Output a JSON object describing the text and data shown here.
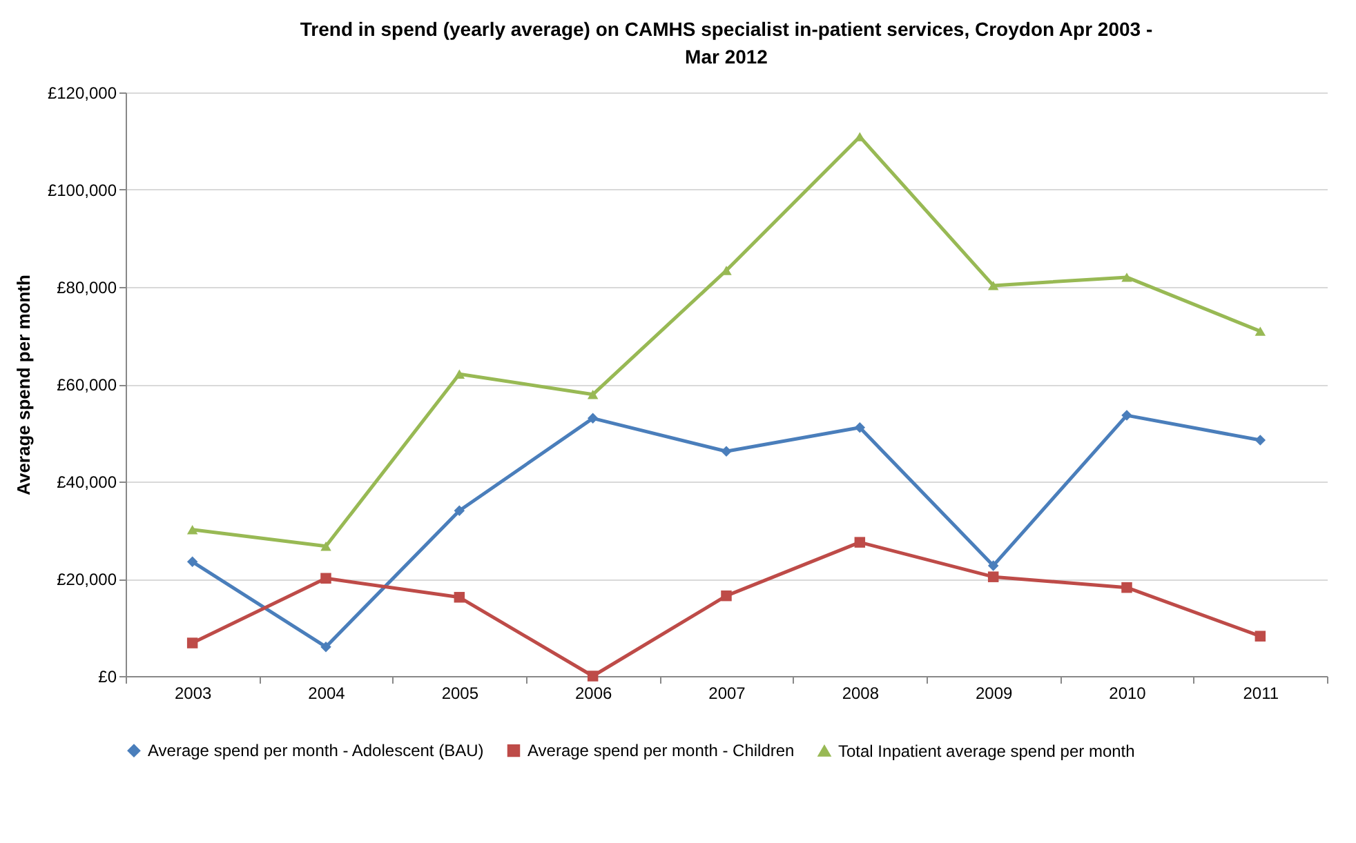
{
  "chart_data": {
    "type": "line",
    "title": "Trend in spend (yearly average) on CAMHS specialist in-patient services, Croydon Apr 2003 - Mar 2012",
    "ylabel": "Average spend per month",
    "categories": [
      "2003",
      "2004",
      "2005",
      "2006",
      "2007",
      "2008",
      "2009",
      "2010",
      "2011"
    ],
    "series": [
      {
        "name": "Average spend per month - Adolescent (BAU)",
        "color": "#4a7ebb",
        "marker": "diamond",
        "values": [
          23500,
          6000,
          34000,
          53000,
          46200,
          51100,
          22700,
          53600,
          48500
        ]
      },
      {
        "name": "Average spend per month - Children",
        "color": "#be4b48",
        "marker": "square",
        "values": [
          6800,
          20100,
          16200,
          0,
          16500,
          27500,
          20400,
          18200,
          8200
        ]
      },
      {
        "name": "Total Inpatient average spend per month",
        "color": "#98b954",
        "marker": "triangle",
        "values": [
          30100,
          26700,
          62100,
          57900,
          83400,
          110900,
          80300,
          82000,
          70900
        ]
      }
    ],
    "ylim": [
      0,
      120000
    ],
    "yticks": [
      {
        "value": 0,
        "label": "£0"
      },
      {
        "value": 20000,
        "label": "£20,000"
      },
      {
        "value": 40000,
        "label": "£40,000"
      },
      {
        "value": 60000,
        "label": "£60,000"
      },
      {
        "value": 80000,
        "label": "£80,000"
      },
      {
        "value": 100000,
        "label": "£100,000"
      },
      {
        "value": 120000,
        "label": "£120,000"
      }
    ],
    "grid": "y",
    "legend": "bottom",
    "line_style": "solid"
  }
}
